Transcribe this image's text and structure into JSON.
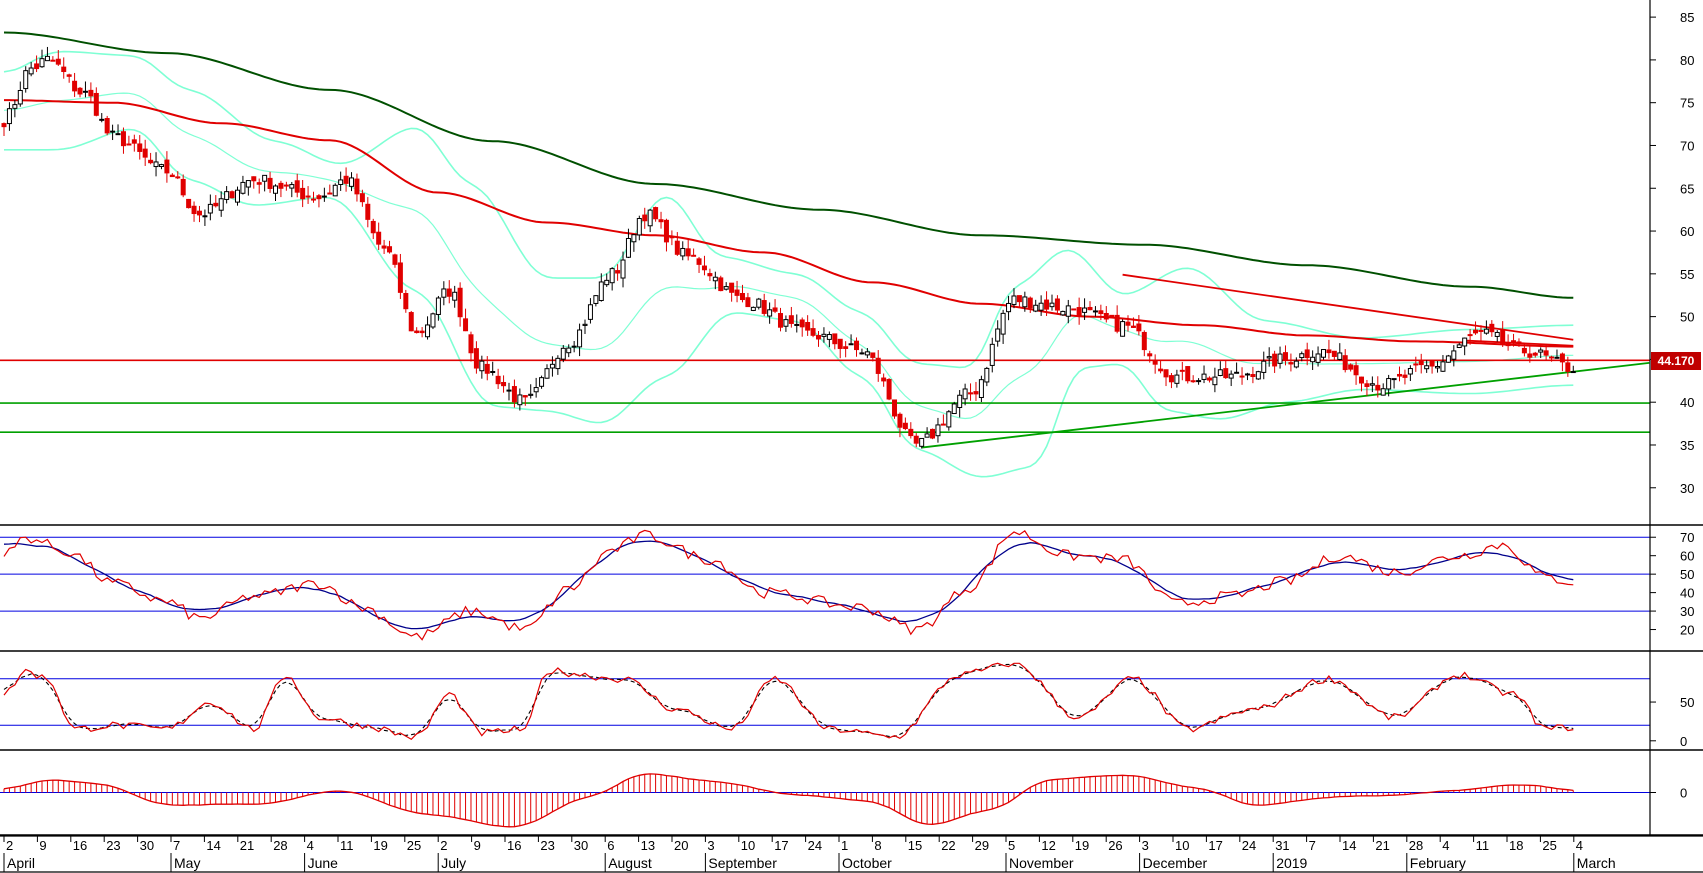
{
  "chart_data": {
    "type": "candlestick",
    "colors": {
      "up": "#000000",
      "down": "#e00000",
      "bollinger": "#7fffd4",
      "ma_long": "#005000",
      "ma_mid": "#e00000",
      "trend_red": "#e00000",
      "trend_green": "#00a000",
      "guide_blue": "#0000e0",
      "price_label_bg": "#c00000"
    },
    "price_axis": {
      "ticks": [
        "85",
        "80",
        "75",
        "70",
        "65",
        "60",
        "55",
        "50",
        "45",
        "40",
        "35",
        "30"
      ],
      "range": [
        26,
        87
      ]
    },
    "last_price_label": "44.170",
    "horizontal_levels": [
      {
        "value": 44.9,
        "color": "red"
      },
      {
        "value": 39.9,
        "color": "green"
      },
      {
        "value": 36.5,
        "color": "green"
      }
    ],
    "trendlines": [
      {
        "color": "red",
        "from": {
          "i": 206,
          "v": 54.9
        },
        "to": {
          "i": 289,
          "v": 47.3
        }
      },
      {
        "color": "red",
        "from": {
          "i": 269,
          "v": 47.2
        },
        "to": {
          "i": 289,
          "v": 46.6
        }
      },
      {
        "color": "green",
        "from": {
          "i": 169,
          "v": 34.7
        },
        "to": {
          "i": 303,
          "v": 44.6
        }
      }
    ],
    "date_axis": {
      "day_ticks": [
        "2",
        "9",
        "16",
        "23",
        "30",
        "7",
        "14",
        "21",
        "28",
        "4",
        "11",
        "19",
        "25",
        "2",
        "9",
        "16",
        "23",
        "30",
        "6",
        "13",
        "20",
        "3",
        "10",
        "17",
        "24",
        "1",
        "8",
        "15",
        "22",
        "29",
        "5",
        "12",
        "19",
        "26",
        "3",
        "10",
        "17",
        "24",
        "31",
        "7",
        "14",
        "21",
        "28",
        "4",
        "11",
        "18",
        "25",
        "4"
      ],
      "months": [
        "April",
        "May",
        "June",
        "July",
        "August",
        "September",
        "October",
        "November",
        "December",
        "2019",
        "February",
        "March"
      ]
    },
    "price_anchors": [
      [
        0,
        73
      ],
      [
        5,
        79
      ],
      [
        8,
        80
      ],
      [
        15,
        76
      ],
      [
        20,
        71
      ],
      [
        30,
        67
      ],
      [
        36,
        62
      ],
      [
        46,
        66
      ],
      [
        58,
        64
      ],
      [
        63,
        66
      ],
      [
        70,
        58
      ],
      [
        76,
        48
      ],
      [
        82,
        53
      ],
      [
        88,
        44
      ],
      [
        96,
        40
      ],
      [
        104,
        47
      ],
      [
        112,
        55
      ],
      [
        118,
        62
      ],
      [
        126,
        57
      ],
      [
        136,
        52
      ],
      [
        148,
        48
      ],
      [
        158,
        46
      ],
      [
        168,
        35
      ],
      [
        178,
        41
      ],
      [
        186,
        52
      ],
      [
        196,
        51
      ],
      [
        206,
        49
      ],
      [
        216,
        43
      ],
      [
        226,
        43
      ],
      [
        236,
        45
      ],
      [
        242,
        46
      ],
      [
        254,
        42
      ],
      [
        262,
        44
      ],
      [
        272,
        48
      ],
      [
        280,
        46
      ],
      [
        289,
        44
      ]
    ],
    "ma_long_anchors": [
      [
        0,
        83.2
      ],
      [
        30,
        80.8
      ],
      [
        60,
        76.5
      ],
      [
        90,
        70.5
      ],
      [
        120,
        65.5
      ],
      [
        150,
        62.5
      ],
      [
        180,
        59.5
      ],
      [
        210,
        58.4
      ],
      [
        240,
        56.0
      ],
      [
        270,
        53.5
      ],
      [
        289,
        52.2
      ]
    ],
    "ma_mid_anchors": [
      [
        0,
        75.3
      ],
      [
        20,
        75.0
      ],
      [
        40,
        72.6
      ],
      [
        60,
        70.6
      ],
      [
        80,
        64.5
      ],
      [
        100,
        61.0
      ],
      [
        120,
        59.5
      ],
      [
        140,
        57.5
      ],
      [
        160,
        54.0
      ],
      [
        180,
        51.5
      ],
      [
        200,
        50.0
      ],
      [
        220,
        49.0
      ],
      [
        240,
        47.8
      ],
      [
        260,
        47.1
      ],
      [
        289,
        46.5
      ]
    ],
    "bollinger_upper_anchors": [
      [
        0,
        78.5
      ],
      [
        10,
        81.0
      ],
      [
        24,
        80.5
      ],
      [
        34,
        76.5
      ],
      [
        50,
        70.5
      ],
      [
        62,
        67.8
      ],
      [
        76,
        72.2
      ],
      [
        86,
        65.5
      ],
      [
        100,
        54.5
      ],
      [
        110,
        54.5
      ],
      [
        122,
        64.3
      ],
      [
        132,
        57.0
      ],
      [
        146,
        55.0
      ],
      [
        158,
        50.5
      ],
      [
        168,
        44.5
      ],
      [
        178,
        44.0
      ],
      [
        186,
        53.5
      ],
      [
        196,
        58.0
      ],
      [
        206,
        52.5
      ],
      [
        218,
        55.8
      ],
      [
        232,
        49.5
      ],
      [
        250,
        47.5
      ],
      [
        270,
        48.5
      ],
      [
        289,
        49.0
      ]
    ],
    "bollinger_lower_anchors": [
      [
        0,
        69.5
      ],
      [
        10,
        69.5
      ],
      [
        24,
        72.0
      ],
      [
        34,
        66.0
      ],
      [
        46,
        63.0
      ],
      [
        60,
        64.0
      ],
      [
        76,
        53.0
      ],
      [
        90,
        39.5
      ],
      [
        100,
        39.0
      ],
      [
        110,
        37.5
      ],
      [
        122,
        43.0
      ],
      [
        134,
        50.5
      ],
      [
        146,
        49.5
      ],
      [
        158,
        43.0
      ],
      [
        168,
        34.5
      ],
      [
        180,
        31.2
      ],
      [
        190,
        32.5
      ],
      [
        198,
        44.0
      ],
      [
        206,
        44.5
      ],
      [
        214,
        39.0
      ],
      [
        224,
        38.0
      ],
      [
        236,
        40.0
      ],
      [
        250,
        41.5
      ],
      [
        270,
        41.0
      ],
      [
        289,
        42.0
      ]
    ],
    "rsi": {
      "ticks": [
        "70",
        "60",
        "50",
        "40",
        "30",
        "20"
      ],
      "range": [
        10,
        75
      ],
      "levels": [
        70,
        50,
        30
      ],
      "anchors": [
        [
          0,
          60
        ],
        [
          4,
          70
        ],
        [
          12,
          62
        ],
        [
          20,
          45
        ],
        [
          30,
          35
        ],
        [
          36,
          26
        ],
        [
          46,
          38
        ],
        [
          58,
          45
        ],
        [
          66,
          32
        ],
        [
          76,
          16
        ],
        [
          86,
          30
        ],
        [
          96,
          20
        ],
        [
          104,
          42
        ],
        [
          112,
          63
        ],
        [
          118,
          71
        ],
        [
          130,
          58
        ],
        [
          140,
          40
        ],
        [
          158,
          32
        ],
        [
          168,
          20
        ],
        [
          178,
          43
        ],
        [
          186,
          73
        ],
        [
          196,
          60
        ],
        [
          206,
          58
        ],
        [
          216,
          34
        ],
        [
          226,
          38
        ],
        [
          236,
          46
        ],
        [
          246,
          60
        ],
        [
          256,
          51
        ],
        [
          268,
          60
        ],
        [
          276,
          66
        ],
        [
          284,
          48
        ],
        [
          289,
          46
        ]
      ]
    },
    "stochastic": {
      "ticks": [
        "50",
        "0"
      ],
      "range": [
        -8,
        112
      ],
      "levels": [
        80,
        20
      ],
      "anchors": [
        [
          0,
          60
        ],
        [
          4,
          90
        ],
        [
          8,
          80
        ],
        [
          13,
          15
        ],
        [
          20,
          20
        ],
        [
          30,
          15
        ],
        [
          38,
          50
        ],
        [
          46,
          15
        ],
        [
          52,
          85
        ],
        [
          58,
          30
        ],
        [
          66,
          20
        ],
        [
          76,
          5
        ],
        [
          82,
          60
        ],
        [
          88,
          10
        ],
        [
          96,
          15
        ],
        [
          100,
          90
        ],
        [
          114,
          80
        ],
        [
          124,
          40
        ],
        [
          134,
          15
        ],
        [
          142,
          80
        ],
        [
          152,
          15
        ],
        [
          164,
          5
        ],
        [
          176,
          85
        ],
        [
          186,
          100
        ],
        [
          198,
          30
        ],
        [
          208,
          80
        ],
        [
          218,
          15
        ],
        [
          230,
          40
        ],
        [
          244,
          80
        ],
        [
          256,
          30
        ],
        [
          268,
          85
        ],
        [
          278,
          60
        ],
        [
          284,
          15
        ],
        [
          289,
          18
        ]
      ]
    },
    "macd": {
      "ticks": [
        "0"
      ],
      "range": [
        -9,
        9
      ],
      "anchors": [
        [
          0,
          0.5
        ],
        [
          8,
          3.0
        ],
        [
          18,
          2.0
        ],
        [
          30,
          -3.0
        ],
        [
          48,
          -2.5
        ],
        [
          62,
          0.5
        ],
        [
          78,
          -5.0
        ],
        [
          94,
          -8.0
        ],
        [
          108,
          -1.0
        ],
        [
          118,
          4.5
        ],
        [
          130,
          2.5
        ],
        [
          146,
          -0.5
        ],
        [
          160,
          -2.0
        ],
        [
          170,
          -7.5
        ],
        [
          182,
          -4.0
        ],
        [
          192,
          3.0
        ],
        [
          206,
          4.0
        ],
        [
          220,
          1.0
        ],
        [
          230,
          -3.0
        ],
        [
          244,
          -1.0
        ],
        [
          256,
          -0.5
        ],
        [
          268,
          0.5
        ],
        [
          280,
          2.0
        ],
        [
          289,
          0.3
        ]
      ]
    }
  }
}
